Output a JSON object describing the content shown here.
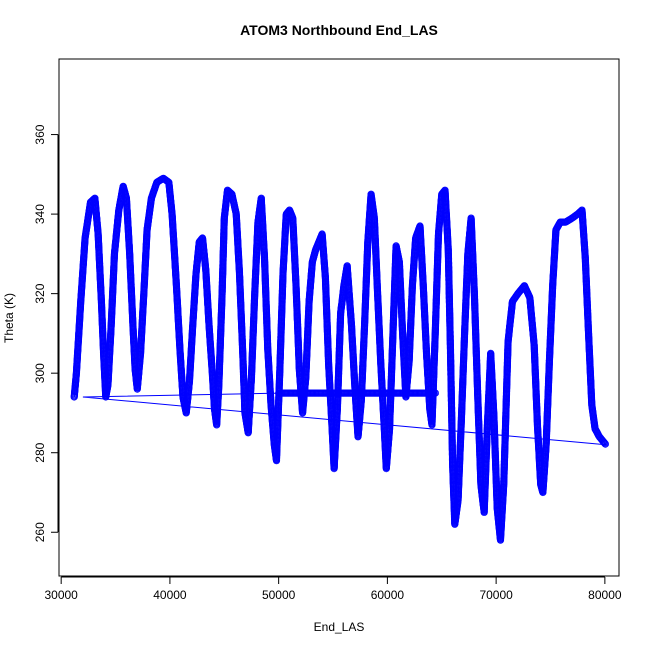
{
  "chart_data": {
    "type": "scatter",
    "title": "ATOM3 Northbound End_LAS",
    "xlabel": "End_LAS",
    "ylabel": "Theta (K)",
    "xlim": [
      29800,
      81300
    ],
    "ylim": [
      249,
      379
    ],
    "x_ticks": [
      30000,
      40000,
      50000,
      60000,
      70000,
      80000
    ],
    "y_ticks": [
      260,
      280,
      300,
      320,
      340,
      360
    ],
    "grid": false,
    "legend": "none",
    "series": [
      {
        "color": "#0000ff",
        "marker": "open-circle",
        "joined": "line",
        "points": [
          [
            31200,
            294
          ],
          [
            31400,
            300
          ],
          [
            31800,
            318
          ],
          [
            32200,
            334
          ],
          [
            32700,
            343
          ],
          [
            33100,
            344
          ],
          [
            33400,
            335
          ],
          [
            33700,
            318
          ],
          [
            33900,
            305
          ],
          [
            34100,
            294
          ],
          [
            34300,
            297
          ],
          [
            34600,
            312
          ],
          [
            34900,
            330
          ],
          [
            35300,
            341
          ],
          [
            35700,
            347
          ],
          [
            36000,
            344
          ],
          [
            36300,
            330
          ],
          [
            36600,
            312
          ],
          [
            36800,
            301
          ],
          [
            37000,
            296
          ],
          [
            37300,
            305
          ],
          [
            37600,
            320
          ],
          [
            37900,
            336
          ],
          [
            38300,
            344
          ],
          [
            38800,
            348
          ],
          [
            39400,
            349
          ],
          [
            39900,
            348
          ],
          [
            40200,
            340
          ],
          [
            40600,
            322
          ],
          [
            40900,
            307
          ],
          [
            41200,
            294
          ],
          [
            41500,
            290
          ],
          [
            41800,
            298
          ],
          [
            42100,
            312
          ],
          [
            42400,
            325
          ],
          [
            42700,
            333
          ],
          [
            43000,
            334
          ],
          [
            43300,
            326
          ],
          [
            43600,
            312
          ],
          [
            43900,
            300
          ],
          [
            44100,
            291
          ],
          [
            44300,
            287
          ],
          [
            44500,
            297
          ],
          [
            44800,
            320
          ],
          [
            45000,
            339
          ],
          [
            45300,
            346
          ],
          [
            45700,
            345
          ],
          [
            46100,
            340
          ],
          [
            46400,
            325
          ],
          [
            46700,
            305
          ],
          [
            46900,
            290
          ],
          [
            47200,
            285
          ],
          [
            47500,
            299
          ],
          [
            47800,
            320
          ],
          [
            48100,
            338
          ],
          [
            48400,
            344
          ],
          [
            48700,
            329
          ],
          [
            49000,
            306
          ],
          [
            49300,
            292
          ],
          [
            49600,
            282
          ],
          [
            49800,
            278
          ],
          [
            50100,
            300
          ],
          [
            50400,
            325
          ],
          [
            50700,
            340
          ],
          [
            51000,
            341
          ],
          [
            51300,
            339
          ],
          [
            51600,
            322
          ],
          [
            51900,
            301
          ],
          [
            52200,
            290
          ],
          [
            52500,
            299
          ],
          [
            52800,
            318
          ],
          [
            53100,
            328
          ],
          [
            53400,
            331
          ],
          [
            53700,
            333
          ],
          [
            54000,
            335
          ],
          [
            54300,
            324
          ],
          [
            54600,
            302
          ],
          [
            54900,
            287
          ],
          [
            55100,
            276
          ],
          [
            55400,
            291
          ],
          [
            55700,
            315
          ],
          [
            56000,
            322
          ],
          [
            56300,
            327
          ],
          [
            56700,
            312
          ],
          [
            57000,
            297
          ],
          [
            57300,
            284
          ],
          [
            57600,
            293
          ],
          [
            57900,
            312
          ],
          [
            58200,
            333
          ],
          [
            58500,
            345
          ],
          [
            58800,
            339
          ],
          [
            59100,
            320
          ],
          [
            59400,
            302
          ],
          [
            59700,
            287
          ],
          [
            59900,
            276
          ],
          [
            60200,
            286
          ],
          [
            60500,
            309
          ],
          [
            60800,
            332
          ],
          [
            61100,
            328
          ],
          [
            61400,
            310
          ],
          [
            61700,
            294
          ],
          [
            62000,
            303
          ],
          [
            62300,
            322
          ],
          [
            62600,
            334
          ],
          [
            63000,
            337
          ],
          [
            63300,
            322
          ],
          [
            63600,
            305
          ],
          [
            63900,
            291
          ],
          [
            64100,
            287
          ],
          [
            64400,
            310
          ],
          [
            64700,
            335
          ],
          [
            65000,
            345
          ],
          [
            65300,
            346
          ],
          [
            65600,
            331
          ],
          [
            65800,
            306
          ],
          [
            66000,
            277
          ],
          [
            66200,
            262
          ],
          [
            66500,
            268
          ],
          [
            66800,
            288
          ],
          [
            67100,
            310
          ],
          [
            67400,
            330
          ],
          [
            67700,
            339
          ],
          [
            68000,
            320
          ],
          [
            68300,
            295
          ],
          [
            68600,
            272
          ],
          [
            68900,
            265
          ],
          [
            69200,
            287
          ],
          [
            69500,
            305
          ],
          [
            69800,
            289
          ],
          [
            70100,
            266
          ],
          [
            70400,
            258
          ],
          [
            70700,
            272
          ],
          [
            70900,
            290
          ],
          [
            71100,
            308
          ],
          [
            71500,
            318
          ],
          [
            72000,
            320
          ],
          [
            72600,
            322
          ],
          [
            73100,
            319
          ],
          [
            73500,
            307
          ],
          [
            73800,
            287
          ],
          [
            74100,
            272
          ],
          [
            74300,
            270
          ],
          [
            74600,
            282
          ],
          [
            74900,
            303
          ],
          [
            75200,
            322
          ],
          [
            75500,
            336
          ],
          [
            75900,
            338
          ],
          [
            76400,
            338
          ],
          [
            77000,
            339
          ],
          [
            77500,
            340
          ],
          [
            77900,
            341
          ],
          [
            78200,
            329
          ],
          [
            78500,
            310
          ],
          [
            78800,
            292
          ],
          [
            79100,
            286
          ],
          [
            79500,
            284
          ],
          [
            80100,
            282
          ],
          [
            32000,
            294
          ],
          [
            50000,
            295
          ],
          [
            64500,
            295
          ]
        ]
      }
    ]
  }
}
